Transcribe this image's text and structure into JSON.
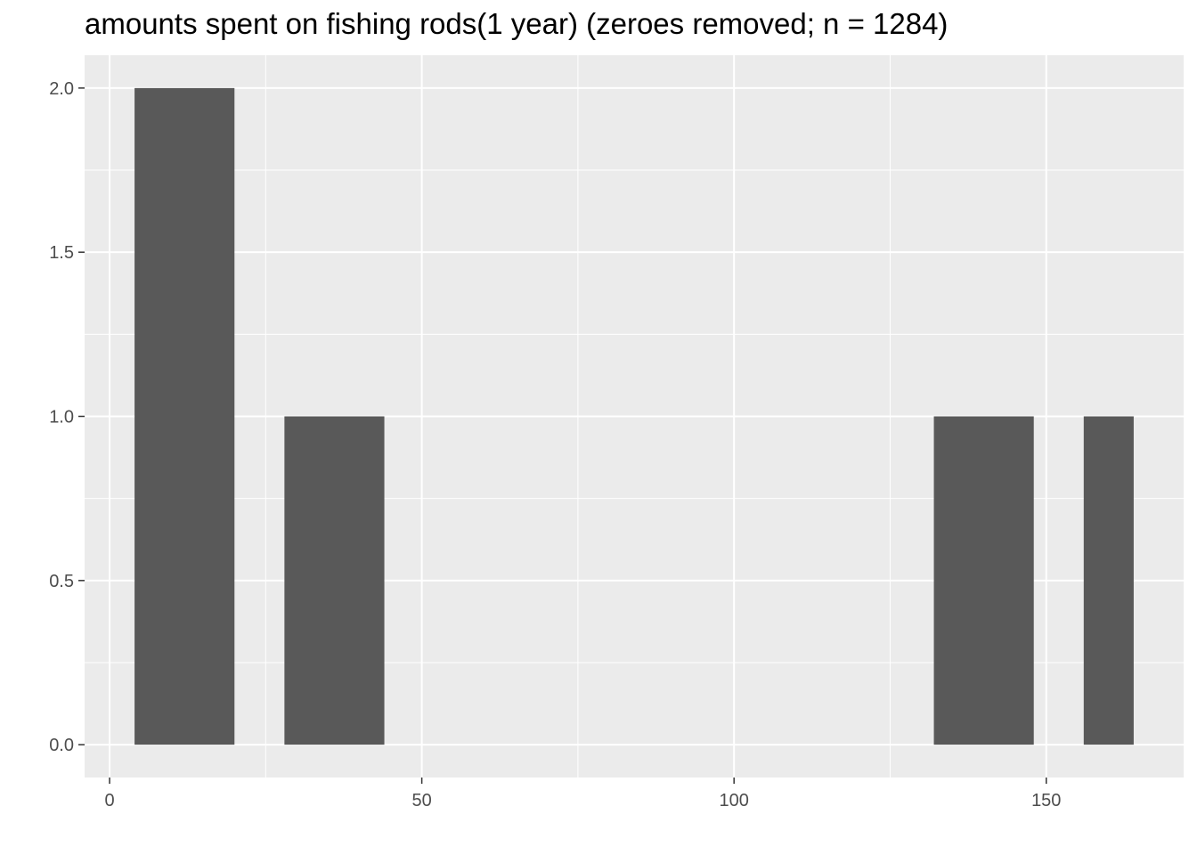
{
  "chart_data": {
    "type": "bar",
    "title": "amounts spent on fishing rods(1 year) (zeroes removed; n = 1284)",
    "xlabel": "",
    "ylabel": "",
    "xlim": [
      -4,
      172
    ],
    "ylim": [
      -0.1,
      2.1
    ],
    "x_ticks": [
      0,
      50,
      100,
      150
    ],
    "x_tick_labels": [
      "0",
      "50",
      "100",
      "150"
    ],
    "y_ticks": [
      0,
      0.5,
      1,
      1.5,
      2
    ],
    "y_tick_labels": [
      "0.0",
      "0.5",
      "1.0",
      "1.5",
      "2.0"
    ],
    "bars": [
      {
        "x_start": 4,
        "x_end": 20,
        "value": 2
      },
      {
        "x_start": 28,
        "x_end": 44,
        "value": 1
      },
      {
        "x_start": 132,
        "x_end": 148,
        "value": 1
      },
      {
        "x_start": 156,
        "x_end": 164,
        "value": 1
      }
    ],
    "grid": true,
    "colors": {
      "panel": "#ebebeb",
      "grid_major": "#ffffff",
      "bar": "#595959",
      "tick_text": "#4d4d4d"
    }
  }
}
